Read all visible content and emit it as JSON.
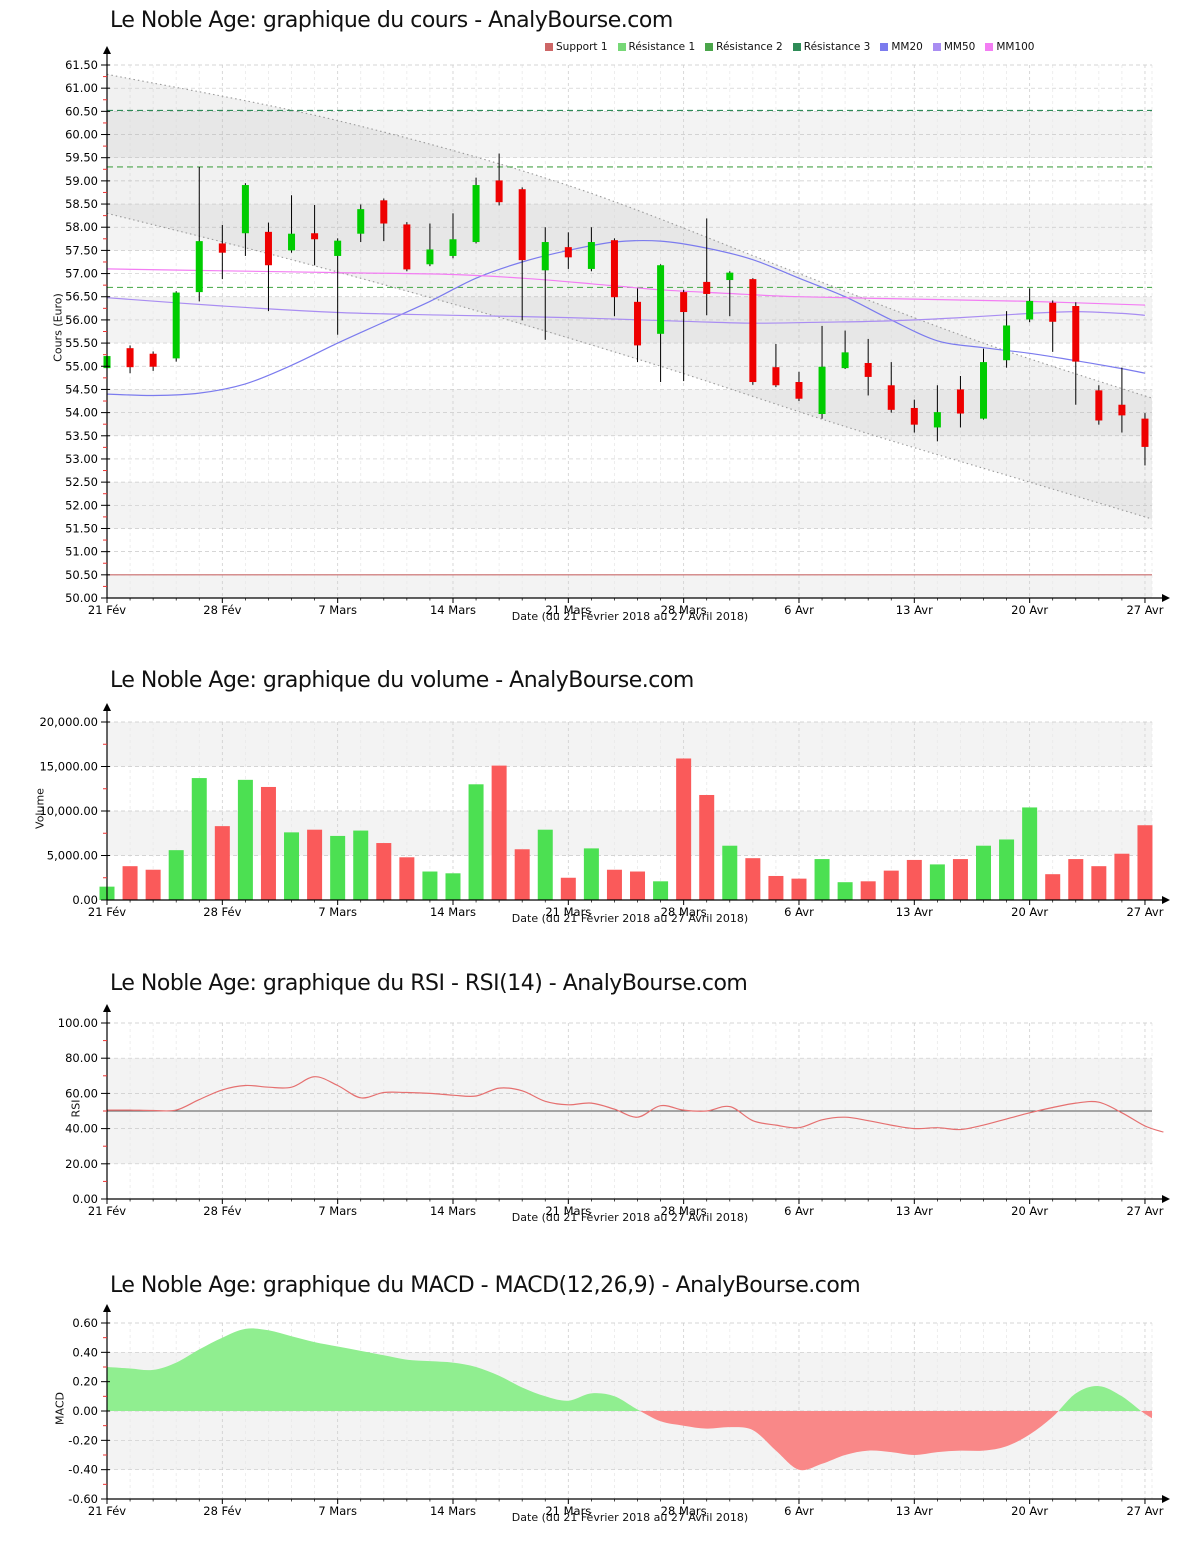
{
  "x_axis": {
    "label": "Date (du 21 Février 2018 au 27 Avril 2018)",
    "num_days": 46,
    "ticks": [
      {
        "d": 0,
        "label": "21 Fév"
      },
      {
        "d": 5,
        "label": "28 Fév"
      },
      {
        "d": 10,
        "label": "7 Mars"
      },
      {
        "d": 15,
        "label": "14 Mars"
      },
      {
        "d": 20,
        "label": "21 Mars"
      },
      {
        "d": 25,
        "label": "28 Mars"
      },
      {
        "d": 30,
        "label": "6 Avr"
      },
      {
        "d": 35,
        "label": "13 Avr"
      },
      {
        "d": 40,
        "label": "20 Avr"
      },
      {
        "d": 45,
        "label": "27 Avr"
      }
    ]
  },
  "chart_data": [
    {
      "type": "candlestick",
      "title": "Le Noble Age: graphique du cours - AnalyBourse.com",
      "ylabel": "Cours (Euro)",
      "ylim": [
        50.0,
        61.5
      ],
      "ytick_step": 0.5,
      "y_minor_step": 0.25,
      "y_decimals": 2,
      "grid": true,
      "legend": [
        {
          "label": "Support 1",
          "color": "#cd6666"
        },
        {
          "label": "Résistance 1",
          "color": "#77d877"
        },
        {
          "label": "Résistance 2",
          "color": "#4aa54a"
        },
        {
          "label": "Résistance 3",
          "color": "#2e8b57"
        },
        {
          "label": "MM20",
          "color": "#7b7bee"
        },
        {
          "label": "MM50",
          "color": "#a98df2"
        },
        {
          "label": "MM100",
          "color": "#f37df3"
        }
      ],
      "levels": [
        {
          "name": "Support 1",
          "value": 50.5,
          "color": "#c96a6a",
          "style": "solid"
        },
        {
          "name": "Résistance 1",
          "value": 56.7,
          "color": "#57b057",
          "style": "dashed"
        },
        {
          "name": "Résistance 2",
          "value": 59.3,
          "color": "#4aa54a",
          "style": "dashed"
        },
        {
          "name": "Résistance 3",
          "value": 60.52,
          "color": "#2e8b57",
          "style": "dashed"
        }
      ],
      "channel": {
        "upper": [
          [
            0,
            61.3
          ],
          [
            10,
            60.3
          ],
          [
            20,
            58.9
          ],
          [
            30,
            57.0
          ],
          [
            38,
            55.5
          ],
          [
            46,
            54.2
          ]
        ],
        "lower": [
          [
            0,
            58.3
          ],
          [
            8,
            57.3
          ],
          [
            16,
            56.2
          ],
          [
            24,
            55.0
          ],
          [
            32,
            53.7
          ],
          [
            40,
            52.5
          ],
          [
            46,
            51.6
          ]
        ]
      },
      "moving_averages": [
        {
          "name": "MM20",
          "color": "#7b7bee",
          "points": [
            [
              0,
              54.4
            ],
            [
              2,
              54.37
            ],
            [
              4,
              54.42
            ],
            [
              6,
              54.62
            ],
            [
              8,
              55.02
            ],
            [
              10,
              55.5
            ],
            [
              12,
              55.95
            ],
            [
              14,
              56.4
            ],
            [
              16,
              56.9
            ],
            [
              18,
              57.25
            ],
            [
              20,
              57.5
            ],
            [
              22,
              57.68
            ],
            [
              24,
              57.7
            ],
            [
              26,
              57.55
            ],
            [
              28,
              57.3
            ],
            [
              30,
              56.9
            ],
            [
              32,
              56.5
            ],
            [
              34,
              56.0
            ],
            [
              36,
              55.55
            ],
            [
              38,
              55.4
            ],
            [
              40,
              55.28
            ],
            [
              42,
              55.12
            ],
            [
              44,
              54.95
            ],
            [
              45,
              54.85
            ]
          ]
        },
        {
          "name": "MM50",
          "color": "#a98df2",
          "points": [
            [
              0,
              56.48
            ],
            [
              5,
              56.3
            ],
            [
              10,
              56.16
            ],
            [
              15,
              56.1
            ],
            [
              20,
              56.05
            ],
            [
              25,
              55.97
            ],
            [
              28,
              55.93
            ],
            [
              31,
              55.95
            ],
            [
              34,
              55.98
            ],
            [
              37,
              56.05
            ],
            [
              40,
              56.14
            ],
            [
              42,
              56.18
            ],
            [
              44,
              56.14
            ],
            [
              45,
              56.1
            ]
          ]
        },
        {
          "name": "MM100",
          "color": "#f37df3",
          "points": [
            [
              0,
              57.1
            ],
            [
              5,
              57.06
            ],
            [
              10,
              57.02
            ],
            [
              15,
              56.98
            ],
            [
              18,
              56.9
            ],
            [
              21,
              56.78
            ],
            [
              24,
              56.65
            ],
            [
              27,
              56.57
            ],
            [
              30,
              56.5
            ],
            [
              35,
              56.45
            ],
            [
              40,
              56.4
            ],
            [
              45,
              56.32
            ]
          ]
        }
      ],
      "candles": {
        "up_color": "#00cc00",
        "down_color": "#ee0000",
        "ohlc": [
          [
            54.96,
            55.3,
            54.88,
            55.22
          ],
          [
            55.39,
            55.45,
            54.85,
            54.98
          ],
          [
            55.27,
            55.32,
            54.9,
            54.99
          ],
          [
            55.17,
            56.62,
            55.1,
            56.59
          ],
          [
            56.6,
            59.3,
            56.4,
            57.7
          ],
          [
            57.65,
            58.05,
            56.88,
            57.45
          ],
          [
            57.87,
            58.95,
            57.38,
            58.91
          ],
          [
            57.9,
            58.1,
            56.19,
            57.18
          ],
          [
            57.5,
            58.69,
            57.45,
            57.86
          ],
          [
            57.87,
            58.48,
            57.18,
            57.74
          ],
          [
            57.38,
            57.76,
            55.68,
            57.71
          ],
          [
            57.86,
            58.49,
            57.68,
            58.39
          ],
          [
            58.58,
            58.62,
            57.7,
            58.08
          ],
          [
            58.06,
            58.11,
            57.05,
            57.09
          ],
          [
            57.2,
            58.08,
            57.16,
            57.52
          ],
          [
            57.38,
            58.3,
            57.33,
            57.74
          ],
          [
            57.68,
            59.07,
            57.65,
            58.91
          ],
          [
            59.01,
            59.59,
            58.47,
            58.54
          ],
          [
            58.82,
            58.86,
            55.99,
            57.29
          ],
          [
            57.07,
            58.0,
            55.57,
            57.68
          ],
          [
            57.57,
            57.89,
            57.1,
            57.35
          ],
          [
            57.1,
            58.0,
            57.05,
            57.68
          ],
          [
            57.72,
            57.76,
            56.08,
            56.49
          ],
          [
            56.39,
            56.68,
            55.09,
            55.45
          ],
          [
            55.7,
            57.2,
            54.66,
            57.18
          ],
          [
            56.6,
            56.65,
            54.68,
            56.17
          ],
          [
            56.82,
            58.19,
            56.1,
            56.56
          ],
          [
            56.86,
            57.05,
            56.08,
            57.02
          ],
          [
            56.88,
            56.9,
            54.6,
            54.66
          ],
          [
            54.98,
            55.48,
            54.55,
            54.59
          ],
          [
            54.66,
            54.88,
            54.25,
            54.3
          ],
          [
            53.97,
            55.87,
            53.87,
            54.99
          ],
          [
            54.96,
            55.77,
            54.94,
            55.3
          ],
          [
            55.07,
            55.59,
            54.37,
            54.77
          ],
          [
            54.59,
            55.09,
            54.0,
            54.06
          ],
          [
            54.1,
            54.28,
            53.57,
            53.74
          ],
          [
            53.68,
            54.59,
            53.38,
            54.01
          ],
          [
            54.5,
            54.79,
            53.68,
            53.98
          ],
          [
            53.87,
            55.38,
            53.85,
            55.09
          ],
          [
            55.13,
            56.19,
            54.97,
            55.88
          ],
          [
            56.01,
            56.68,
            55.95,
            56.41
          ],
          [
            56.37,
            56.42,
            55.31,
            55.96
          ],
          [
            56.3,
            56.38,
            54.17,
            55.1
          ],
          [
            54.48,
            54.59,
            53.74,
            53.83
          ],
          [
            54.17,
            54.97,
            53.57,
            53.94
          ],
          [
            53.87,
            53.99,
            52.86,
            53.26
          ]
        ]
      },
      "gray_bands": [
        [
          50.0,
          50.5
        ],
        [
          51.5,
          52.5
        ],
        [
          53.5,
          54.5
        ],
        [
          55.5,
          56.5
        ],
        [
          57.5,
          58.5
        ],
        [
          59.5,
          60.5
        ]
      ]
    },
    {
      "type": "bar",
      "title": "Le Noble Age: graphique du volume - AnalyBourse.com",
      "ylabel": "Volume",
      "ylim": [
        0,
        20000
      ],
      "ytick_step": 5000,
      "y_minor_step": 2500,
      "y_decimals": 2,
      "y_thousands": true,
      "up_color": "#4ce052",
      "down_color": "#fa5a5a",
      "values": [
        1500,
        3800,
        3400,
        5600,
        13700,
        8300,
        13500,
        12700,
        7600,
        7900,
        7200,
        7800,
        6400,
        4800,
        3200,
        3000,
        13000,
        15100,
        5700,
        7900,
        2500,
        5800,
        3400,
        3200,
        2100,
        15900,
        11800,
        6100,
        4700,
        2700,
        2400,
        4600,
        2000,
        2100,
        3300,
        4500,
        4000,
        4600,
        6100,
        6800,
        10400,
        2900,
        4600,
        3800,
        5200,
        8400
      ],
      "gray_bands": [
        [
          5000,
          10000
        ],
        [
          15000,
          20000
        ]
      ]
    },
    {
      "type": "line",
      "title": "Le Noble Age: graphique du RSI - RSI(14) - AnalyBourse.com",
      "ylabel": "RSI",
      "ylim": [
        0,
        100
      ],
      "ytick_step": 20,
      "y_minor_step": 10,
      "y_decimals": 2,
      "line_color": "#e57070",
      "mid_line": {
        "value": 50,
        "color": "#555555"
      },
      "values": [
        50.5,
        50.5,
        50.3,
        50.5,
        56.5,
        62,
        64.5,
        63.5,
        63.5,
        69.5,
        64.5,
        57.5,
        60.5,
        60.5,
        60,
        59,
        58.5,
        63,
        61.5,
        55.5,
        53.5,
        54.5,
        51,
        46.5,
        53,
        50.5,
        50,
        52.5,
        44.5,
        42,
        40.5,
        45,
        46.5,
        44.5,
        42,
        40,
        40.5,
        39.5,
        42,
        45.5,
        49,
        52,
        54.5,
        55,
        49,
        41.5
      ],
      "tail": [
        45.8,
        38
      ],
      "gray_bands": [
        [
          20,
          80
        ]
      ]
    },
    {
      "type": "area",
      "title": "Le Noble Age: graphique du MACD - MACD(12,26,9) - AnalyBourse.com",
      "ylabel": "MACD",
      "ylim": [
        -0.6,
        0.6
      ],
      "ytick_step": 0.2,
      "y_minor_step": 0.1,
      "y_decimals": 2,
      "pos_color": "#90ee90",
      "neg_color": "#f98888",
      "values": [
        0.3,
        0.29,
        0.28,
        0.33,
        0.42,
        0.5,
        0.56,
        0.55,
        0.51,
        0.47,
        0.44,
        0.41,
        0.38,
        0.35,
        0.34,
        0.33,
        0.3,
        0.24,
        0.16,
        0.1,
        0.07,
        0.12,
        0.1,
        0.01,
        -0.07,
        -0.1,
        -0.12,
        -0.11,
        -0.13,
        -0.27,
        -0.4,
        -0.36,
        -0.3,
        -0.27,
        -0.28,
        -0.3,
        -0.28,
        -0.27,
        -0.27,
        -0.24,
        -0.16,
        -0.04,
        0.12,
        0.17,
        0.1,
        -0.02
      ],
      "tail": [
        45.8,
        -0.09
      ],
      "gray_bands": [
        [
          -0.4,
          0.4
        ]
      ]
    }
  ]
}
